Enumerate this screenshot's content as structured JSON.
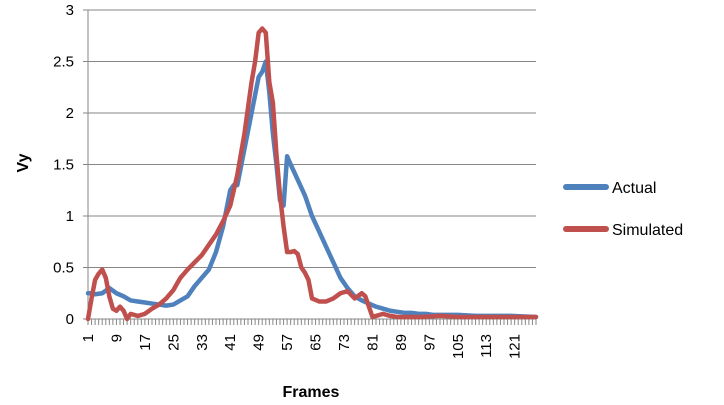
{
  "chart_data": {
    "type": "line",
    "title": "",
    "xlabel": "Frames",
    "ylabel": "Vy",
    "xlim": [
      1,
      127
    ],
    "ylim": [
      0,
      3
    ],
    "yticks": [
      "0",
      "0.5",
      "1",
      "1.5",
      "2",
      "2.5",
      "3"
    ],
    "xticks": [
      1,
      9,
      17,
      25,
      33,
      41,
      49,
      57,
      65,
      73,
      81,
      89,
      97,
      105,
      113,
      121
    ],
    "grid": true,
    "legend_position": "right",
    "series": [
      {
        "name": "Actual",
        "color": "#4F81BD",
        "x": [
          1,
          2,
          3,
          5,
          7,
          9,
          11,
          13,
          15,
          17,
          19,
          21,
          23,
          25,
          27,
          29,
          31,
          33,
          35,
          37,
          39,
          41,
          42,
          43,
          45,
          47,
          49,
          50,
          51,
          52,
          53,
          54,
          55,
          56,
          57,
          58,
          60,
          62,
          64,
          66,
          68,
          70,
          72,
          74,
          76,
          78,
          80,
          82,
          84,
          86,
          88,
          90,
          92,
          94,
          96,
          98,
          100,
          105,
          110,
          115,
          120,
          127
        ],
        "y": [
          0.25,
          0.25,
          0.24,
          0.25,
          0.3,
          0.25,
          0.22,
          0.18,
          0.17,
          0.16,
          0.15,
          0.14,
          0.13,
          0.14,
          0.18,
          0.22,
          0.32,
          0.4,
          0.48,
          0.65,
          0.9,
          1.25,
          1.3,
          1.3,
          1.65,
          2.0,
          2.35,
          2.4,
          2.5,
          2.2,
          1.8,
          1.5,
          1.15,
          1.1,
          1.58,
          1.5,
          1.35,
          1.2,
          1.0,
          0.85,
          0.7,
          0.55,
          0.4,
          0.3,
          0.22,
          0.18,
          0.15,
          0.12,
          0.1,
          0.08,
          0.07,
          0.06,
          0.06,
          0.05,
          0.05,
          0.04,
          0.04,
          0.04,
          0.03,
          0.03,
          0.03,
          0.02
        ]
      },
      {
        "name": "Simulated",
        "color": "#C0504D",
        "x": [
          1,
          2,
          3,
          4,
          5,
          6,
          7,
          8,
          9,
          10,
          11,
          12,
          13,
          14,
          15,
          17,
          19,
          21,
          23,
          25,
          27,
          29,
          31,
          33,
          35,
          37,
          39,
          41,
          43,
          45,
          47,
          48,
          49,
          50,
          51,
          52,
          53,
          54,
          55,
          56,
          57,
          58,
          59,
          60,
          61,
          62,
          63,
          64,
          66,
          68,
          70,
          72,
          74,
          76,
          78,
          79,
          80,
          81,
          82,
          84,
          86,
          88,
          90,
          95,
          100,
          105,
          110,
          115,
          120,
          127
        ],
        "y": [
          0.0,
          0.2,
          0.38,
          0.44,
          0.48,
          0.4,
          0.22,
          0.1,
          0.08,
          0.12,
          0.08,
          0.0,
          0.05,
          0.04,
          0.03,
          0.05,
          0.1,
          0.14,
          0.2,
          0.28,
          0.4,
          0.48,
          0.55,
          0.62,
          0.72,
          0.82,
          0.95,
          1.1,
          1.4,
          1.8,
          2.3,
          2.5,
          2.78,
          2.82,
          2.78,
          2.3,
          2.1,
          1.6,
          1.2,
          0.9,
          0.65,
          0.65,
          0.66,
          0.63,
          0.5,
          0.45,
          0.38,
          0.2,
          0.17,
          0.17,
          0.2,
          0.25,
          0.27,
          0.2,
          0.25,
          0.22,
          0.12,
          0.02,
          0.03,
          0.05,
          0.03,
          0.02,
          0.02,
          0.02,
          0.03,
          0.02,
          0.02,
          0.02,
          0.02,
          0.02
        ]
      }
    ]
  }
}
